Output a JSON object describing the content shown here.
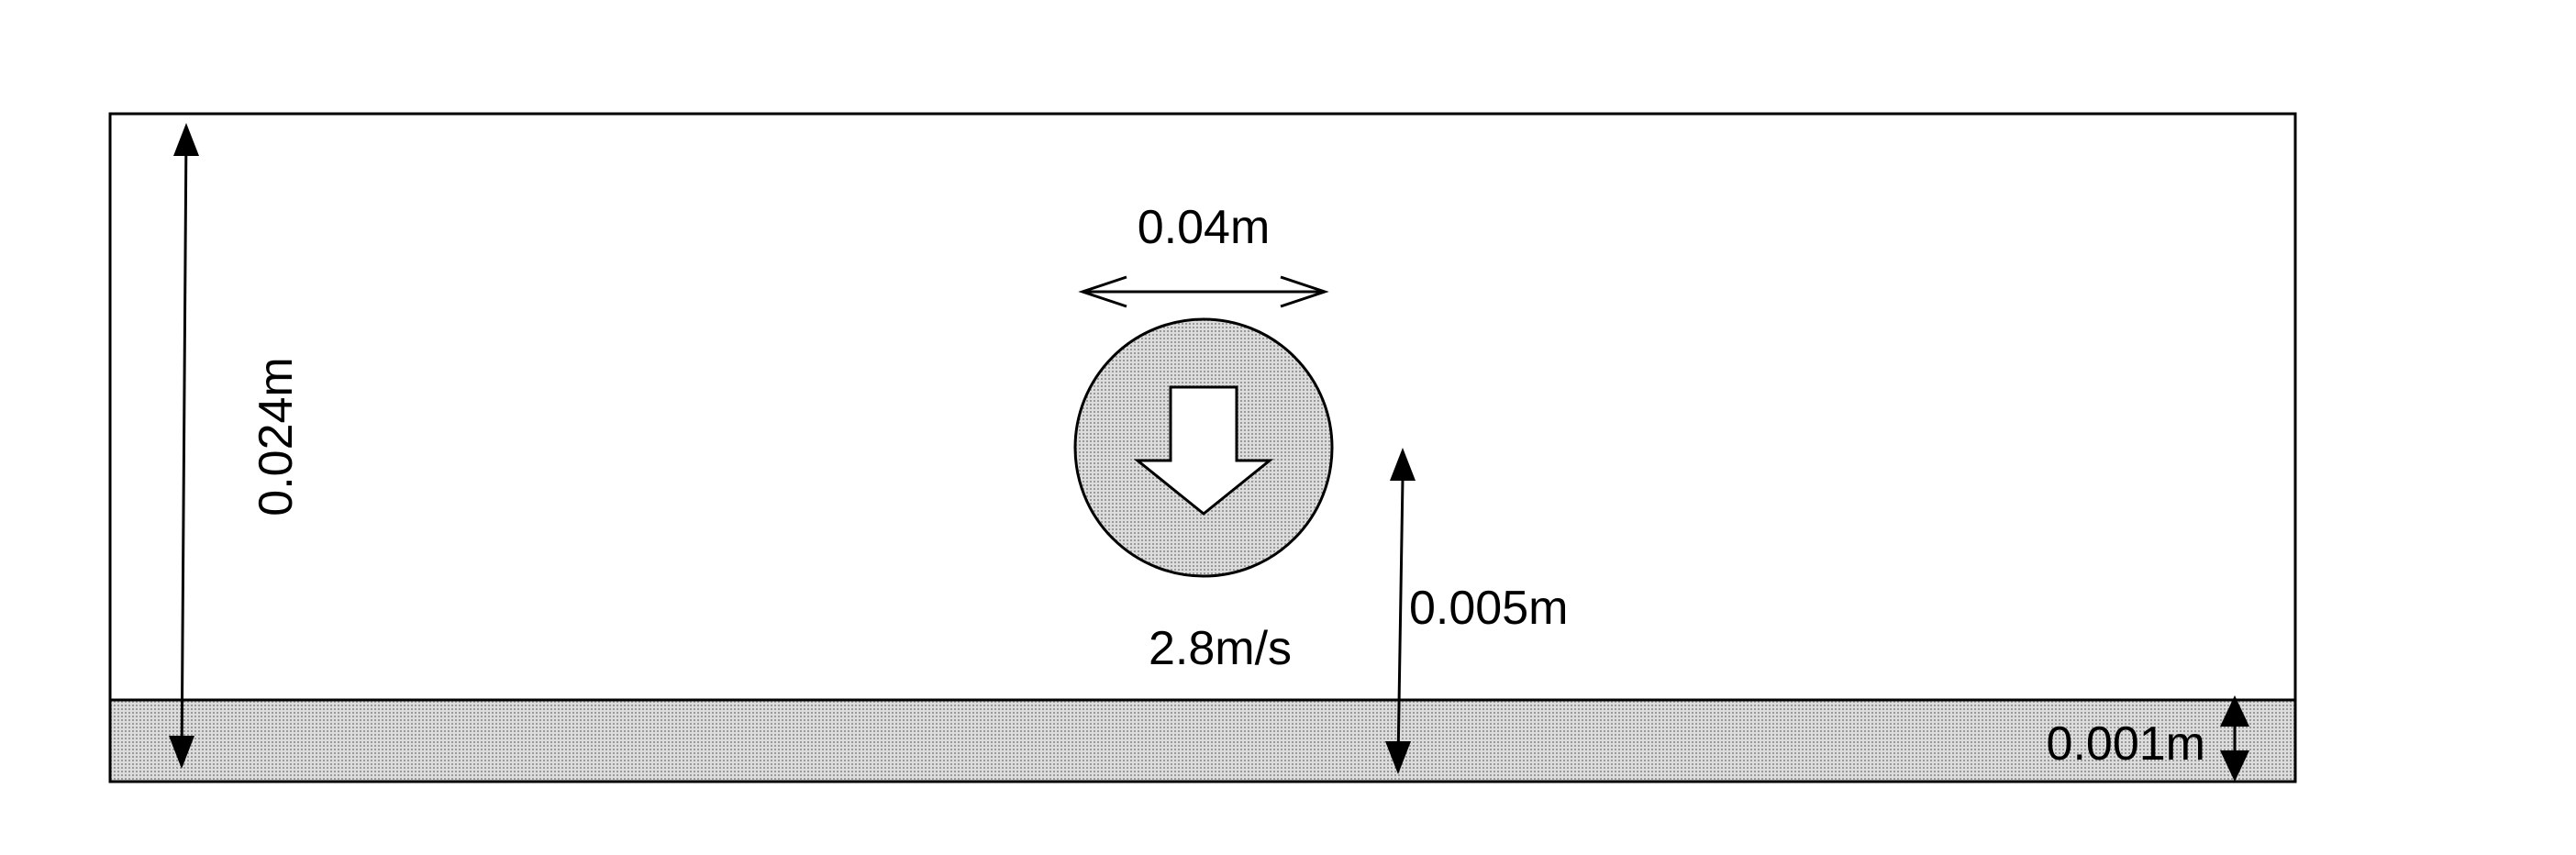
{
  "labels": {
    "domain_height": "0.024m",
    "cylinder_diameter": "0.04m",
    "gap_height": "0.005m",
    "wall_thickness": "0.001m",
    "velocity": "2.8m/s"
  },
  "colors": {
    "stroke": "#000000",
    "fill_gray": "#d3d3d3",
    "background": "#ffffff"
  },
  "icons": {
    "velocity_direction": "down-arrow-icon"
  }
}
